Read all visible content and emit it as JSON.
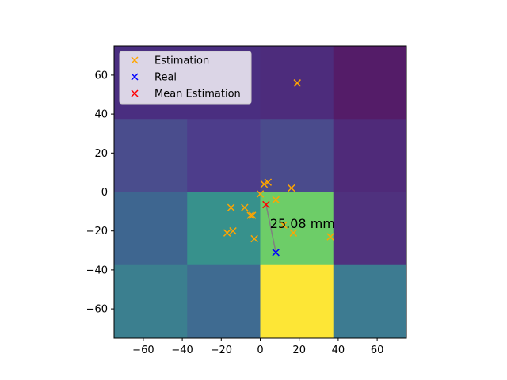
{
  "chart_data": {
    "type": "scatter",
    "title": "",
    "xlabel": "",
    "ylabel": "",
    "xlim": [
      -75,
      75
    ],
    "ylim": [
      -75,
      75
    ],
    "grid": false,
    "legend_position": "top-left",
    "xticks": [
      -60,
      -40,
      -20,
      0,
      20,
      40,
      60
    ],
    "yticks": [
      -60,
      -40,
      -20,
      0,
      20,
      40,
      60
    ],
    "xtick_labels": [
      "−60",
      "−40",
      "−20",
      "0",
      "20",
      "40",
      "60"
    ],
    "ytick_labels": [
      "−60",
      "−40",
      "−20",
      "0",
      "20",
      "40",
      "60"
    ],
    "heatmap": {
      "x_edges": [
        -75,
        -37.5,
        0,
        37.5,
        75
      ],
      "y_edges": [
        75,
        37.5,
        0,
        -37.5,
        -75
      ],
      "colors": [
        [
          "#4a2e80",
          "#4a2e80",
          "#4d2c7c",
          "#541c68"
        ],
        [
          "#4a4d8d",
          "#4d3d8b",
          "#4a4b8c",
          "#4f2a79"
        ],
        [
          "#3e6690",
          "#37918c",
          "#6dcd68",
          "#4f317e"
        ],
        [
          "#3b7f8f",
          "#3f6b91",
          "#fde636",
          "#3d7b91"
        ]
      ]
    },
    "series": [
      {
        "name": "Estimation",
        "color": "#ffa500",
        "marker": "x",
        "points": [
          [
            19,
            56
          ],
          [
            0,
            -1
          ],
          [
            2,
            4
          ],
          [
            4,
            5
          ],
          [
            16,
            2
          ],
          [
            8,
            -4
          ],
          [
            -15,
            -8
          ],
          [
            -8,
            -8
          ],
          [
            -5,
            -12
          ],
          [
            -4,
            -12
          ],
          [
            -14,
            -20
          ],
          [
            -17,
            -21
          ],
          [
            -3,
            -24
          ],
          [
            12,
            -17
          ],
          [
            17,
            -21
          ],
          [
            36,
            -23
          ]
        ]
      },
      {
        "name": "Real",
        "color": "#0000ff",
        "marker": "x",
        "points": [
          [
            8,
            -31
          ]
        ]
      },
      {
        "name": "Mean Estimation",
        "color": "#ff0000",
        "marker": "x",
        "points": [
          [
            3,
            -6.5
          ]
        ]
      }
    ],
    "annotations": [
      {
        "text": "25.08 mm",
        "x": 5,
        "y": -16
      }
    ],
    "error_line": {
      "from": [
        3,
        -6.5
      ],
      "to": [
        8,
        -31
      ],
      "color": "#808080"
    }
  }
}
